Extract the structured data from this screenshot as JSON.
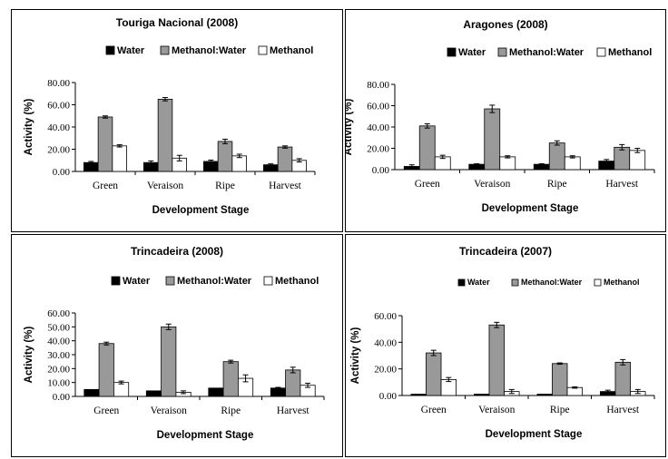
{
  "colors": {
    "Water": "#000000",
    "Methanol:Water": "#999999",
    "Methanol": "#ffffff"
  },
  "chart_data": [
    {
      "type": "bar",
      "title": "Touriga Nacional (2008)",
      "xlabel": "Development Stage",
      "ylabel": "Activity (%)",
      "ylim": [
        0,
        80
      ],
      "yticks": [
        "0.00",
        "20.00",
        "40.00",
        "60.00",
        "80.00"
      ],
      "categories": [
        "Green",
        "Veraison",
        "Ripe",
        "Harvest"
      ],
      "legend_position": "top",
      "series": [
        {
          "name": "Water",
          "values": [
            8,
            8,
            9,
            6
          ],
          "errors": [
            1.0,
            1.5,
            1.2,
            0.8
          ]
        },
        {
          "name": "Methanol:Water",
          "values": [
            49,
            65,
            27,
            22
          ],
          "errors": [
            1.0,
            1.5,
            2.0,
            1.0
          ]
        },
        {
          "name": "Methanol",
          "values": [
            23,
            12,
            14,
            10
          ],
          "errors": [
            1.0,
            2.5,
            1.5,
            1.5
          ]
        }
      ]
    },
    {
      "type": "bar",
      "title": "Aragones (2008)",
      "xlabel": "Development Stage",
      "ylabel": "Activity (%)",
      "ylim": [
        0,
        80
      ],
      "yticks": [
        "0.00",
        "20.00",
        "40.00",
        "60.00",
        "80.00"
      ],
      "categories": [
        "Green",
        "Veraison",
        "Ripe",
        "Harvest"
      ],
      "legend_position": "top",
      "series": [
        {
          "name": "Water",
          "values": [
            3,
            5,
            5,
            8
          ],
          "errors": [
            1.5,
            0.5,
            0.5,
            1.5
          ]
        },
        {
          "name": "Methanol:Water",
          "values": [
            41,
            57,
            25,
            21
          ],
          "errors": [
            2.0,
            3.5,
            2.0,
            2.5
          ]
        },
        {
          "name": "Methanol",
          "values": [
            12,
            12,
            12,
            18
          ],
          "errors": [
            1.5,
            1.0,
            1.0,
            2.0
          ]
        }
      ]
    },
    {
      "type": "bar",
      "title": "Trincadeira (2008)",
      "xlabel": "Development Stage",
      "ylabel": "Activity (%)",
      "ylim": [
        0,
        60
      ],
      "yticks": [
        "0.00",
        "10.00",
        "20.00",
        "30.00",
        "40.00",
        "50.00",
        "60.00"
      ],
      "categories": [
        "Green",
        "Veraison",
        "Ripe",
        "Harvest"
      ],
      "legend_position": "top",
      "series": [
        {
          "name": "Water",
          "values": [
            5,
            4,
            6,
            6
          ],
          "errors": [
            0,
            0,
            0,
            0.5
          ]
        },
        {
          "name": "Methanol:Water",
          "values": [
            38,
            50,
            25,
            19
          ],
          "errors": [
            1.0,
            2.0,
            1.0,
            2.0
          ]
        },
        {
          "name": "Methanol",
          "values": [
            10,
            3,
            13,
            8
          ],
          "errors": [
            1.0,
            1.0,
            2.5,
            1.5
          ]
        }
      ]
    },
    {
      "type": "bar",
      "title": "Trincadeira (2007)",
      "xlabel": "Development Stage",
      "ylabel": "Activity (%)",
      "ylim": [
        0,
        60
      ],
      "yticks": [
        "0.00",
        "20.00",
        "40.00",
        "60.00"
      ],
      "categories": [
        "Green",
        "Veraison",
        "Ripe",
        "Harvest"
      ],
      "legend_position": "top",
      "series": [
        {
          "name": "Water",
          "values": [
            1,
            1,
            1,
            3
          ],
          "errors": [
            0,
            0,
            0,
            1.0
          ]
        },
        {
          "name": "Methanol:Water",
          "values": [
            32,
            53,
            24,
            25
          ],
          "errors": [
            2.0,
            2.0,
            0.5,
            2.0
          ]
        },
        {
          "name": "Methanol",
          "values": [
            12,
            3,
            6,
            3
          ],
          "errors": [
            1.5,
            1.5,
            0.5,
            1.5
          ]
        }
      ]
    }
  ]
}
